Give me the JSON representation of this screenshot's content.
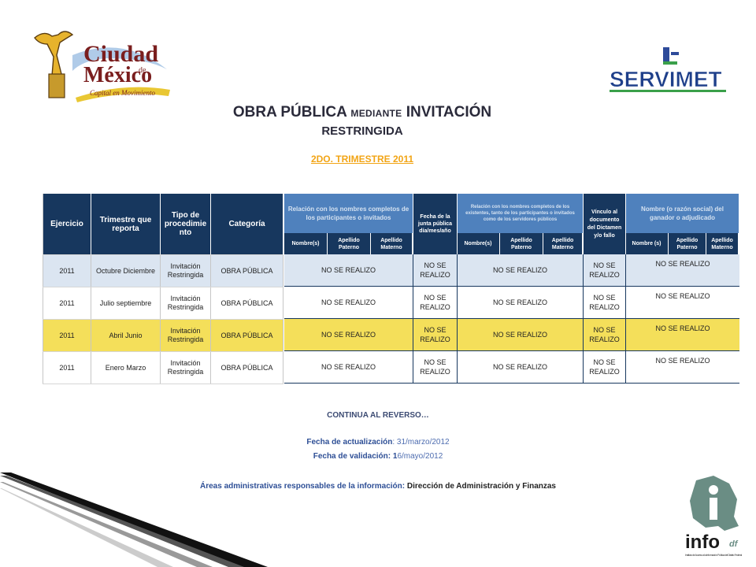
{
  "logos": {
    "cdmx_line1": "Ciudad",
    "cdmx_de": "de",
    "cdmx_line2": "México",
    "cdmx_tagline": "Capital en Movimiento",
    "servimet": "SERVIMET",
    "info_main": "info",
    "info_df": "df",
    "info_caption": "Instituto de Acceso a la Información Pública del Distrito Federal"
  },
  "title": {
    "part1": "OBRA PÚBLICA ",
    "part_small": "MEDIANTE",
    "part2": " INVITACIÓN",
    "line2": "RESTRINGIDA"
  },
  "subtitle": "2DO. TRIMESTRE 2011",
  "left_table": {
    "headers": [
      "Ejercicio",
      "Trimestre que reporta",
      "Tipo de procedimie nto",
      "Categoría"
    ],
    "rows": [
      [
        "2011",
        "Octubre Diciembre",
        "Invitación Restringida",
        "OBRA PÚBLICA"
      ],
      [
        "2011",
        "Julio septiembre",
        "Invitación Restringida",
        "OBRA PÚBLICA"
      ],
      [
        "2011",
        "Abril Junio",
        "Invitación Restringida",
        "OBRA PÚBLICA"
      ],
      [
        "2011",
        "Enero Marzo",
        "Invitación Restringida",
        "OBRA PÚBLICA"
      ]
    ]
  },
  "right_table": {
    "group_headers": [
      "Relación con los nombres completos de los participantes o invitados",
      "Fecha de la junta pública día/mes/año",
      "Relación con los nombres completos de los existentes, tanto de los participantes o invitados como de los servidores públicos",
      "Vínculo al documento del Dictamen y/o fallo",
      "Nombre (o razón social) del ganador o adjudicado"
    ],
    "sub_headers": {
      "g1": [
        "Nombre(s)",
        "Apellido Paterno",
        "Apellido Materno"
      ],
      "g3": [
        "Nombre(s)",
        "Apellido Paterno",
        "Apellido Materno"
      ],
      "g5": [
        "Nombre (s)",
        "Apellido Paterno",
        "Apellido Materno"
      ]
    },
    "cell_text": "NO SE REALIZO",
    "rows": [
      [
        "NO SE REALIZO",
        "NO SE REALIZO",
        "NO SE REALIZO",
        "NO SE REALIZO",
        "NO SE REALIZO"
      ],
      [
        "NO SE REALIZO",
        "NO SE REALIZO",
        "NO SE REALIZO",
        "NO SE REALIZO",
        "NO SE REALIZO"
      ],
      [
        "NO SE REALIZO",
        "NO SE REALIZO",
        "NO SE REALIZO",
        "NO SE REALIZO",
        "NO SE REALIZO"
      ],
      [
        "NO SE REALIZO",
        "NO SE REALIZO",
        "NO SE REALIZO",
        "NO SE REALIZO",
        "NO SE REALIZO"
      ]
    ]
  },
  "footer": {
    "continua": "CONTINUA AL REVERSO…",
    "actualizacion_label": "Fecha de actualización",
    "actualizacion_value": ": 31/marzo/2012",
    "validacion_label": "Fecha de validación: 1",
    "validacion_value": "6/mayo/2012",
    "areas_label": "Áreas administrativas responsables de la información: ",
    "areas_value": "Dirección de Administración y Finanzas"
  },
  "colors": {
    "header_dark": "#17375e",
    "header_mid": "#4f81bd",
    "row_blue": "#dbe5f1",
    "row_yellow": "#f4df5a",
    "subtitle_orange": "#f2a516"
  }
}
